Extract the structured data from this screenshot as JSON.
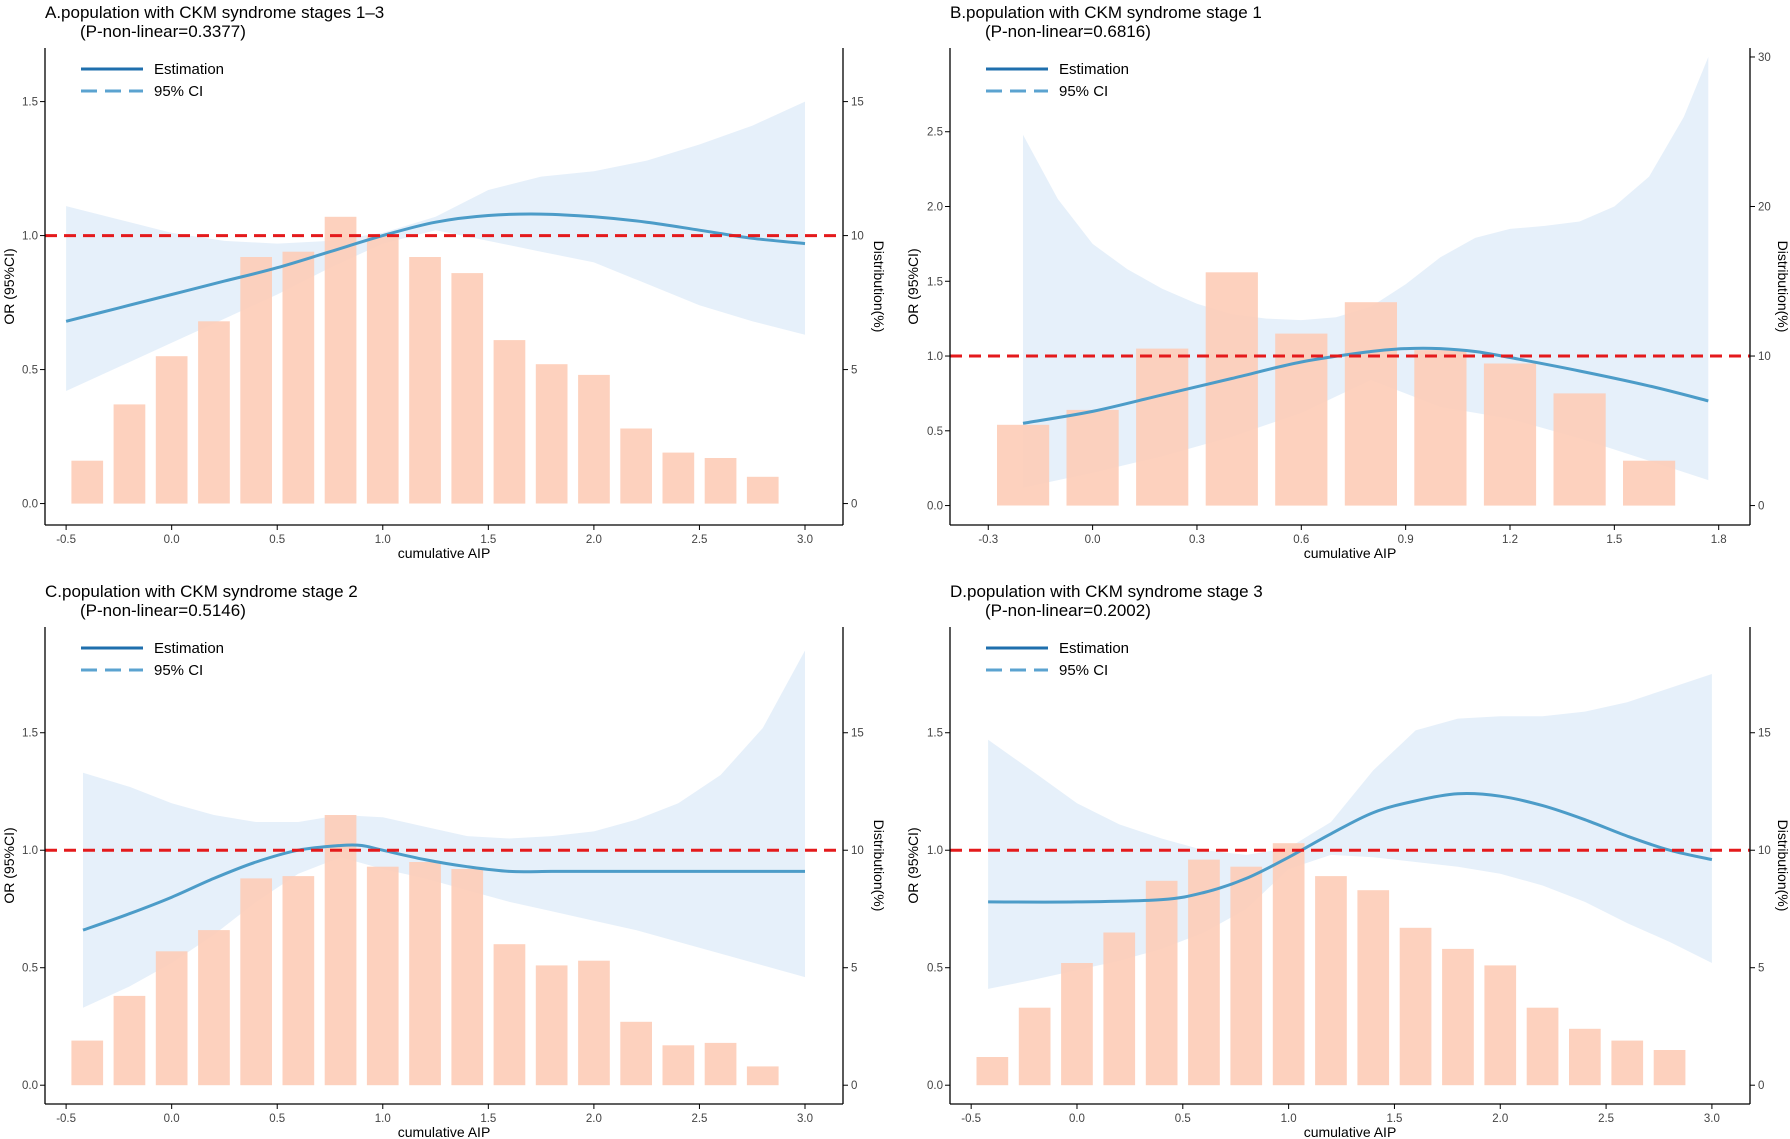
{
  "chart_data": [
    {
      "type": "line+bar",
      "title": "A.population with CKM syndrome stages 1–3",
      "subtitle": "(P-non-linear=0.3377)",
      "xlabel": "cumulative AIP",
      "ylabel": "OR (95%CI)",
      "ylabel_right": "Distribution(%)",
      "xlim": [
        -0.6,
        3.18
      ],
      "ylim": [
        -0.08,
        1.7
      ],
      "ylim_right": [
        -0.8,
        17
      ],
      "xticks": [
        "-0.5",
        "0.0",
        "0.5",
        "1.0",
        "1.5",
        "2.0",
        "2.5",
        "3.0"
      ],
      "yticks": [
        "0.0",
        "0.5",
        "1.0",
        "1.5"
      ],
      "yticks_right": [
        "0",
        "5",
        "10",
        "15"
      ],
      "reference_line": 1.0,
      "legend": [
        "Estimation",
        "95% CI"
      ],
      "bars": {
        "centers": [
          -0.4,
          -0.2,
          0.0,
          0.2,
          0.4,
          0.6,
          0.8,
          1.0,
          1.2,
          1.4,
          1.6,
          1.8,
          2.0,
          2.2,
          2.4,
          2.6,
          2.8
        ],
        "width": 0.15,
        "values": [
          1.6,
          3.7,
          5.5,
          6.8,
          9.2,
          9.4,
          10.7,
          10.0,
          9.2,
          8.6,
          6.1,
          5.2,
          4.8,
          2.8,
          1.9,
          1.7,
          1.0
        ]
      },
      "estimate": {
        "x": [
          -0.5,
          -0.25,
          0.0,
          0.25,
          0.5,
          0.75,
          1.0,
          1.25,
          1.5,
          1.75,
          2.0,
          2.25,
          2.5,
          2.75,
          3.0
        ],
        "y": [
          0.68,
          0.73,
          0.78,
          0.83,
          0.88,
          0.94,
          1.0,
          1.05,
          1.075,
          1.08,
          1.07,
          1.05,
          1.02,
          0.99,
          0.97
        ]
      },
      "ci_upper": {
        "x": [
          -0.5,
          -0.25,
          0.0,
          0.25,
          0.5,
          0.75,
          1.0,
          1.25,
          1.5,
          1.75,
          2.0,
          2.25,
          2.5,
          2.75,
          3.0
        ],
        "y": [
          1.11,
          1.06,
          1.01,
          0.98,
          0.97,
          0.98,
          1.01,
          1.07,
          1.17,
          1.22,
          1.24,
          1.28,
          1.34,
          1.41,
          1.5
        ]
      },
      "ci_lower": {
        "x": [
          -0.5,
          -0.25,
          0.0,
          0.25,
          0.5,
          0.75,
          1.0,
          1.25,
          1.5,
          1.75,
          2.0,
          2.25,
          2.5,
          2.75,
          3.0
        ],
        "y": [
          0.42,
          0.51,
          0.6,
          0.69,
          0.78,
          0.88,
          0.97,
          1.02,
          0.98,
          0.94,
          0.9,
          0.82,
          0.74,
          0.68,
          0.63
        ]
      }
    },
    {
      "type": "line+bar",
      "title": "B.population with CKM syndrome stage 1",
      "subtitle": "(P-non-linear=0.6816)",
      "xlabel": "cumulative AIP",
      "ylabel": "OR (95%CI)",
      "ylabel_right": "Distribution(%)",
      "xlim": [
        -0.41,
        1.89
      ],
      "ylim": [
        -0.13,
        3.06
      ],
      "ylim_right": [
        -1.3,
        30.6
      ],
      "xticks": [
        "-0.3",
        "0.0",
        "0.3",
        "0.6",
        "0.9",
        "1.2",
        "1.5",
        "1.8"
      ],
      "yticks": [
        "0.0",
        "0.5",
        "1.0",
        "1.5",
        "2.0",
        "2.5"
      ],
      "yticks_right": [
        "0",
        "10",
        "20",
        "30"
      ],
      "reference_line": 1.0,
      "legend": [
        "Estimation",
        "95% CI"
      ],
      "bars": {
        "centers": [
          -0.2,
          0.0,
          0.2,
          0.4,
          0.6,
          0.8,
          1.0,
          1.2,
          1.4,
          1.6
        ],
        "width": 0.15,
        "values": [
          5.4,
          6.4,
          10.5,
          15.6,
          11.5,
          13.6,
          10.4,
          9.5,
          7.5,
          3.0
        ]
      },
      "estimate": {
        "x": [
          -0.2,
          0.0,
          0.2,
          0.4,
          0.6,
          0.8,
          0.9,
          1.0,
          1.1,
          1.2,
          1.4,
          1.6,
          1.77
        ],
        "y": [
          0.55,
          0.63,
          0.74,
          0.85,
          0.96,
          1.03,
          1.05,
          1.05,
          1.03,
          0.99,
          0.9,
          0.8,
          0.7
        ]
      },
      "ci_upper": {
        "x": [
          -0.2,
          -0.1,
          0.0,
          0.1,
          0.2,
          0.3,
          0.4,
          0.5,
          0.6,
          0.7,
          0.8,
          0.9,
          1.0,
          1.1,
          1.2,
          1.3,
          1.4,
          1.5,
          1.6,
          1.7,
          1.77
        ],
        "y": [
          2.48,
          2.05,
          1.75,
          1.58,
          1.45,
          1.35,
          1.28,
          1.25,
          1.24,
          1.26,
          1.33,
          1.48,
          1.66,
          1.79,
          1.85,
          1.87,
          1.9,
          2.0,
          2.2,
          2.6,
          3.0
        ]
      },
      "ci_lower": {
        "x": [
          -0.2,
          0.0,
          0.2,
          0.4,
          0.6,
          0.8,
          1.0,
          1.2,
          1.4,
          1.6,
          1.77
        ],
        "y": [
          0.12,
          0.22,
          0.33,
          0.46,
          0.62,
          0.84,
          0.66,
          0.58,
          0.45,
          0.3,
          0.17
        ]
      }
    },
    {
      "type": "line+bar",
      "title": "C.population with CKM syndrome stage 2",
      "subtitle": "(P-non-linear=0.5146)",
      "xlabel": "cumulative AIP",
      "ylabel": "OR (95%CI)",
      "ylabel_right": "Distribution(%)",
      "xlim": [
        -0.6,
        3.18
      ],
      "ylim": [
        -0.08,
        1.95
      ],
      "ylim_right": [
        -0.8,
        19.5
      ],
      "xticks": [
        "-0.5",
        "0.0",
        "0.5",
        "1.0",
        "1.5",
        "2.0",
        "2.5",
        "3.0"
      ],
      "yticks": [
        "0.0",
        "0.5",
        "1.0",
        "1.5"
      ],
      "yticks_right": [
        "0",
        "5",
        "10",
        "15"
      ],
      "reference_line": 1.0,
      "legend": [
        "Estimation",
        "95% CI"
      ],
      "bars": {
        "centers": [
          -0.4,
          -0.2,
          0.0,
          0.2,
          0.4,
          0.6,
          0.8,
          1.0,
          1.2,
          1.4,
          1.6,
          1.8,
          2.0,
          2.2,
          2.4,
          2.6,
          2.8
        ],
        "width": 0.15,
        "values": [
          1.9,
          3.8,
          5.7,
          6.6,
          8.8,
          8.9,
          11.5,
          9.3,
          9.5,
          9.2,
          6.0,
          5.1,
          5.3,
          2.7,
          1.7,
          1.8,
          0.8
        ]
      },
      "estimate": {
        "x": [
          -0.42,
          -0.2,
          0.0,
          0.2,
          0.4,
          0.6,
          0.8,
          0.9,
          1.0,
          1.2,
          1.4,
          1.6,
          1.8,
          2.0,
          2.5,
          3.0
        ],
        "y": [
          0.66,
          0.73,
          0.8,
          0.88,
          0.95,
          1.0,
          1.02,
          1.02,
          1.0,
          0.96,
          0.93,
          0.91,
          0.91,
          0.91,
          0.91,
          0.91
        ]
      },
      "ci_upper": {
        "x": [
          -0.42,
          -0.2,
          0.0,
          0.2,
          0.4,
          0.6,
          0.8,
          1.0,
          1.2,
          1.4,
          1.6,
          1.8,
          2.0,
          2.2,
          2.4,
          2.6,
          2.8,
          3.0
        ],
        "y": [
          1.33,
          1.27,
          1.2,
          1.15,
          1.12,
          1.12,
          1.15,
          1.14,
          1.1,
          1.06,
          1.05,
          1.06,
          1.08,
          1.13,
          1.2,
          1.32,
          1.52,
          1.85
        ]
      },
      "ci_lower": {
        "x": [
          -0.42,
          -0.2,
          0.0,
          0.2,
          0.4,
          0.6,
          0.8,
          1.0,
          1.2,
          1.4,
          1.6,
          1.8,
          2.0,
          2.2,
          2.4,
          2.6,
          2.8,
          3.0
        ],
        "y": [
          0.33,
          0.42,
          0.52,
          0.64,
          0.78,
          0.9,
          0.97,
          0.92,
          0.88,
          0.83,
          0.78,
          0.74,
          0.7,
          0.66,
          0.61,
          0.56,
          0.51,
          0.46
        ]
      }
    },
    {
      "type": "line+bar",
      "title": "D.population with CKM syndrome stage 3",
      "subtitle": "(P-non-linear=0.2002)",
      "xlabel": "cumulative AIP",
      "ylabel": "OR (95%CI)",
      "ylabel_right": "Distribution(%)",
      "xlim": [
        -0.6,
        3.18
      ],
      "ylim": [
        -0.08,
        1.95
      ],
      "ylim_right": [
        -0.8,
        19.5
      ],
      "xticks": [
        "-0.5",
        "0.0",
        "0.5",
        "1.0",
        "1.5",
        "2.0",
        "2.5",
        "3.0"
      ],
      "yticks": [
        "0.0",
        "0.5",
        "1.0",
        "1.5"
      ],
      "yticks_right": [
        "0",
        "5",
        "10",
        "15"
      ],
      "reference_line": 1.0,
      "legend": [
        "Estimation",
        "95% CI"
      ],
      "bars": {
        "centers": [
          -0.4,
          -0.2,
          0.0,
          0.2,
          0.4,
          0.6,
          0.8,
          1.0,
          1.2,
          1.4,
          1.6,
          1.8,
          2.0,
          2.2,
          2.4,
          2.6,
          2.8
        ],
        "width": 0.15,
        "values": [
          1.2,
          3.3,
          5.2,
          6.5,
          8.7,
          9.6,
          9.3,
          10.3,
          8.9,
          8.3,
          6.7,
          5.8,
          5.1,
          3.3,
          2.4,
          1.9,
          1.5
        ]
      },
      "estimate": {
        "x": [
          -0.42,
          0.0,
          0.4,
          0.6,
          0.8,
          1.0,
          1.2,
          1.4,
          1.6,
          1.8,
          2.0,
          2.2,
          2.4,
          2.6,
          2.8,
          3.0
        ],
        "y": [
          0.78,
          0.78,
          0.79,
          0.82,
          0.88,
          0.97,
          1.07,
          1.16,
          1.21,
          1.24,
          1.23,
          1.19,
          1.13,
          1.06,
          1.0,
          0.96
        ]
      },
      "ci_upper": {
        "x": [
          -0.42,
          -0.2,
          0.0,
          0.2,
          0.4,
          0.6,
          0.8,
          1.0,
          1.2,
          1.4,
          1.6,
          1.8,
          2.0,
          2.2,
          2.4,
          2.6,
          2.8,
          3.0
        ],
        "y": [
          1.47,
          1.33,
          1.2,
          1.11,
          1.05,
          1.0,
          0.98,
          1.01,
          1.12,
          1.34,
          1.51,
          1.56,
          1.57,
          1.57,
          1.59,
          1.63,
          1.69,
          1.75
        ]
      },
      "ci_lower": {
        "x": [
          -0.42,
          -0.2,
          0.0,
          0.2,
          0.4,
          0.6,
          0.8,
          1.0,
          1.2,
          1.4,
          1.6,
          1.8,
          2.0,
          2.2,
          2.4,
          2.6,
          2.8,
          3.0
        ],
        "y": [
          0.41,
          0.45,
          0.49,
          0.53,
          0.58,
          0.65,
          0.75,
          0.92,
          0.98,
          0.97,
          0.95,
          0.93,
          0.9,
          0.85,
          0.78,
          0.69,
          0.61,
          0.52
        ]
      }
    }
  ],
  "colors": {
    "bar": "#fdccb7",
    "estimate": "#4c9cc8",
    "estimate_legend": "#1f6fad",
    "ci_fill": "#e3eef9",
    "ci_legend": "#5ba3d0",
    "reference": "#e41a1c",
    "axis": "#000000",
    "tick_text": "#444444"
  }
}
